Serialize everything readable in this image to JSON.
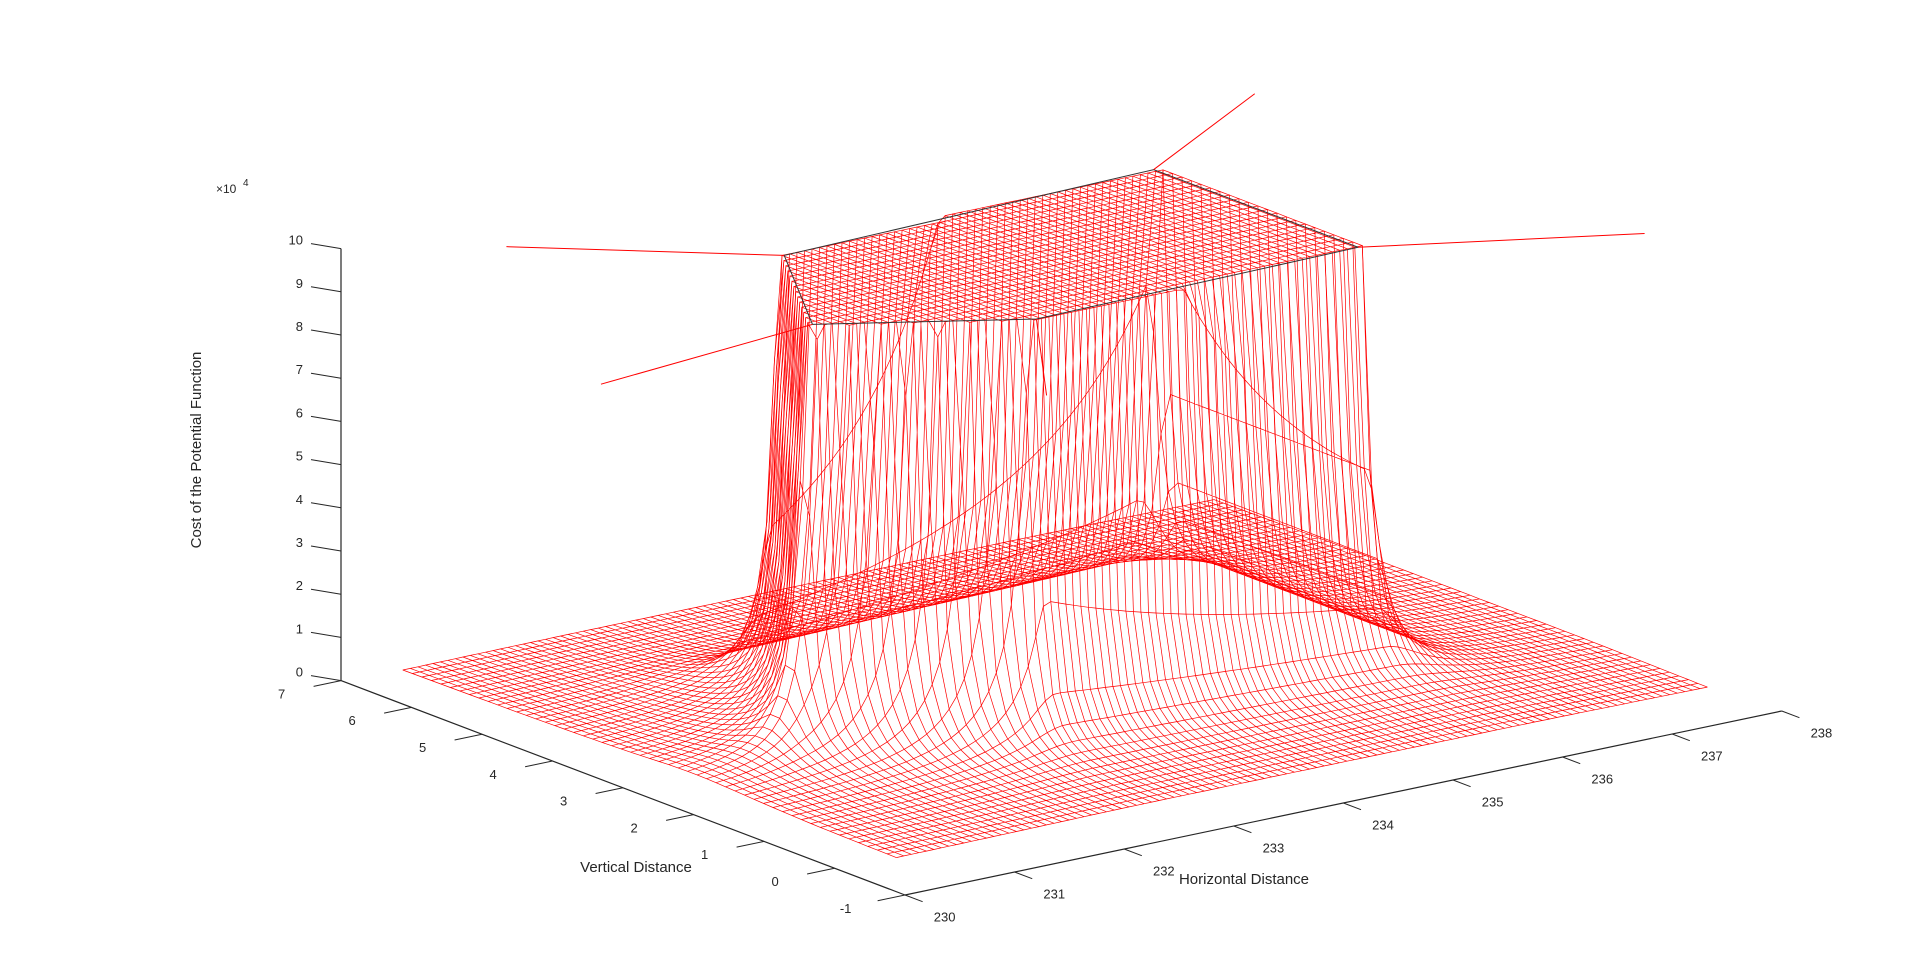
{
  "chart_data": {
    "type": "surface3d",
    "style": "mesh",
    "color": "#ff0000",
    "background": "#ffffff",
    "axis_color": "#262626",
    "grid": false,
    "zlabel": "Cost of the Potential Function",
    "xlabel": "Horizontal Distance",
    "ylabel": "Vertical Distance",
    "z_multiplier_base": "×10",
    "z_multiplier_exp": "4",
    "xlim": [
      230,
      238
    ],
    "ylim": [
      -1,
      7
    ],
    "zlim": [
      0,
      100000
    ],
    "xticks": [
      "230",
      "231",
      "232",
      "233",
      "234",
      "235",
      "236",
      "237",
      "238"
    ],
    "yticks": [
      "-1",
      "0",
      "1",
      "2",
      "3",
      "4",
      "5",
      "6",
      "7"
    ],
    "zticks": [
      "0",
      "1",
      "2",
      "3",
      "4",
      "5",
      "6",
      "7",
      "8",
      "9",
      "10"
    ],
    "surface": {
      "x_range": [
        230.5,
        237.9
      ],
      "y_range": [
        -0.1,
        6.9
      ],
      "floor_z": 0,
      "plateau_z": 100000,
      "obstacle_polygon": [
        [
          231.6,
          2.8
        ],
        [
          232.5,
          4.6
        ],
        [
          236.0,
          4.8
        ],
        [
          236.0,
          1.9
        ],
        [
          233.0,
          1.8
        ]
      ],
      "obstacle_note": "potential rises steeply to a capped plateau over the obstacle region"
    }
  }
}
